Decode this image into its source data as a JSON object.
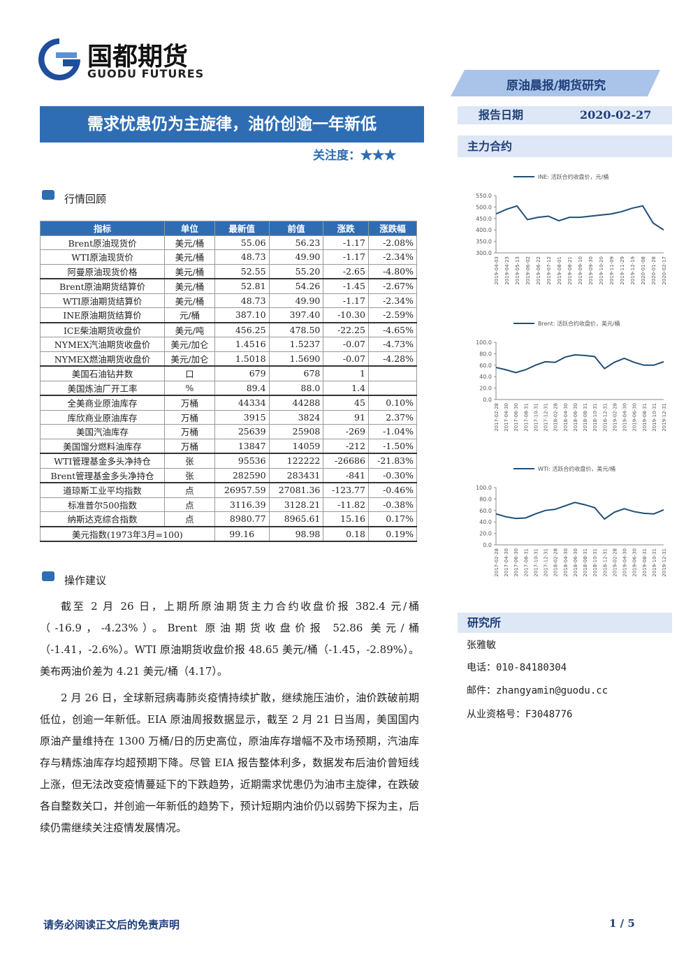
{
  "header": {
    "logo_cn": "国都期货",
    "logo_en": "GUODU FUTURES",
    "banner": "原油晨报/期货研究",
    "title": "需求忧患仍为主旋律，油价创逾一年新低",
    "attention": "关注度：★★★",
    "date_label": "报告日期",
    "date": "2020-02-27"
  },
  "sections": {
    "review": "行情回顾",
    "advice": "操作建议",
    "main": "主力合约",
    "institute": "研究所"
  },
  "table": {
    "headers": [
      "指标",
      "单位",
      "最新值",
      "前值",
      "涨跌",
      "涨跌幅"
    ],
    "rows": [
      [
        "Brent原油现货价",
        "美元/桶",
        "55.06",
        "56.23",
        "-1.17",
        "-2.08%"
      ],
      [
        "WTI原油现货价",
        "美元/桶",
        "48.73",
        "49.90",
        "-1.17",
        "-2.34%"
      ],
      [
        "阿曼原油现货价格",
        "美元/桶",
        "52.55",
        "55.20",
        "-2.65",
        "-4.80%"
      ],
      [
        "Brent原油期货结算价",
        "美元/桶",
        "52.81",
        "54.26",
        "-1.45",
        "-2.67%"
      ],
      [
        "WTI原油期货结算价",
        "美元/桶",
        "48.73",
        "49.90",
        "-1.17",
        "-2.34%"
      ],
      [
        "INE原油期货结算价",
        "元/桶",
        "387.10",
        "397.40",
        "-10.30",
        "-2.59%"
      ],
      [
        "ICE柴油期货收盘价",
        "美元/吨",
        "456.25",
        "478.50",
        "-22.25",
        "-4.65%"
      ],
      [
        "NYMEX汽油期货收盘价",
        "美元/加仑",
        "1.4516",
        "1.5237",
        "-0.07",
        "-4.73%"
      ],
      [
        "NYMEX燃油期货收盘价",
        "美元/加仑",
        "1.5018",
        "1.5690",
        "-0.07",
        "-4.28%"
      ],
      [
        "美国石油钻井数",
        "口",
        "679",
        "678",
        "1",
        null
      ],
      [
        "美国炼油厂开工率",
        "%",
        "89.4",
        "88.0",
        "1.4",
        null
      ],
      [
        "全美商业原油库存",
        "万桶",
        "44334",
        "44288",
        "45",
        "0.10%"
      ],
      [
        "库欣商业原油库存",
        "万桶",
        "3915",
        "3824",
        "91",
        "2.37%"
      ],
      [
        "美国汽油库存",
        "万桶",
        "25639",
        "25908",
        "-269",
        "-1.04%"
      ],
      [
        "美国馏分燃料油库存",
        "万桶",
        "13847",
        "14059",
        "-212",
        "-1.50%"
      ],
      [
        "WTI管理基金多头净持仓",
        "张",
        "95536",
        "122222",
        "-26686",
        "-21.83%"
      ],
      [
        "Brent管理基金多头净持仓",
        "张",
        "282590",
        "283431",
        "-841",
        "-0.30%"
      ],
      [
        "道琼斯工业平均指数",
        "点",
        "26957.59",
        "27081.36",
        "-123.77",
        "-0.46%"
      ],
      [
        "标准普尔500指数",
        "点",
        "3116.39",
        "3128.21",
        "-11.82",
        "-0.38%"
      ],
      [
        "纳斯达克综合指数",
        "点",
        "8980.77",
        "8965.61",
        "15.16",
        "0.17%"
      ],
      [
        "美元指数(1973年3月=100)",
        null,
        "99.16",
        "98.98",
        "0.18",
        "0.19%"
      ]
    ]
  },
  "paragraphs": [
    "截至 2 月 26 日，上期所原油期货主力合约收盘价报 382.4 元/桶（-16.9，-4.23%）。Brent 原油期货收盘价报 52.86 美元/桶（-1.41，-2.6%）。WTI 原油期货收盘价报 48.65 美元/桶（-1.45，-2.89%）。美布两油价差为 4.21 美元/桶（4.17）。",
    "2 月 26 日，全球新冠病毒肺炎疫情持续扩散，继续施压油价，油价跌破前期低位，创逾一年新低。EIA 原油周报数据显示，截至 2 月 21 日当周，美国国内原油产量维持在 1300 万桶/日的历史高位，原油库存增幅不及市场预期，汽油库存与精炼油库存均超预期下降。尽管 EIA 报告整体利多，数据发布后油价曾短线上涨，但无法改变疫情蔓延下的下跌趋势，近期需求忧患仍为油市主旋律，在跌破各自整数关口，并创逾一年新低的趋势下，预计短期内油价仍以弱势下探为主，后续仍需继续关注疫情发展情况。"
  ],
  "researcher": {
    "name": "张雅敏",
    "phone": "电话：010-84180304",
    "email": "邮件：zhangyamin@guodu.cc",
    "license": "从业资格号：F3048776"
  },
  "footer": {
    "disclaimer": "请务必阅读正文后的免责声明",
    "page": "1 / 5"
  },
  "chart_data": [
    {
      "type": "line",
      "x": [
        "2019-04-03",
        "2019-04-23",
        "2019-05-13",
        "2019-06-02",
        "2019-06-22",
        "2019-07-12",
        "2019-08-01",
        "2019-08-21",
        "2019-09-10",
        "2019-09-30",
        "2019-10-20",
        "2019-11-09",
        "2019-11-29",
        "2019-12-19",
        "2020-01-08",
        "2020-01-28",
        "2020-02-17"
      ],
      "series": [
        {
          "name": "INE: 活跃合约收盘价，元/桶",
          "color": "#1f4e79",
          "values": [
            470,
            490,
            505,
            445,
            455,
            460,
            440,
            455,
            455,
            460,
            465,
            470,
            480,
            495,
            505,
            430,
            400
          ]
        }
      ],
      "ylim": [
        300,
        550
      ],
      "yticks": [
        {
          "value": 300,
          "label": "300.0"
        },
        {
          "value": 350,
          "label": "350.0"
        },
        {
          "value": 400,
          "label": "400.0"
        },
        {
          "value": 450,
          "label": "450.0"
        },
        {
          "value": 500,
          "label": "500.0"
        },
        {
          "value": 550,
          "label": "550.0"
        }
      ]
    },
    {
      "type": "line",
      "x": [
        "2017-02-28",
        "2017-04-30",
        "2017-06-30",
        "2017-08-31",
        "2017-10-31",
        "2017-12-31",
        "2018-02-28",
        "2018-04-30",
        "2018-06-30",
        "2018-08-31",
        "2018-10-31",
        "2018-12-31",
        "2019-02-28",
        "2019-04-30",
        "2019-06-30",
        "2019-08-31",
        "2019-10-31",
        "2019-12-31"
      ],
      "series": [
        {
          "name": "Brent: 活跃合约收盘价，美元/桶",
          "color": "#1f4e79",
          "values": [
            56,
            52,
            47,
            52,
            60,
            66,
            65,
            74,
            78,
            77,
            75,
            54,
            65,
            72,
            65,
            60,
            60,
            66
          ]
        }
      ],
      "ylim": [
        0,
        100
      ],
      "yticks": [
        {
          "value": 0,
          "label": "0.0"
        },
        {
          "value": 20,
          "label": "20.0"
        },
        {
          "value": 40,
          "label": "40.0"
        },
        {
          "value": 60,
          "label": "60.0"
        },
        {
          "value": 80,
          "label": "80.0"
        },
        {
          "value": 100,
          "label": "100.0"
        }
      ]
    },
    {
      "type": "line",
      "x": [
        "2017-02-28",
        "2017-04-30",
        "2017-06-30",
        "2017-08-31",
        "2017-10-31",
        "2017-12-31",
        "2018-02-28",
        "2018-04-30",
        "2018-06-30",
        "2018-08-31",
        "2018-10-31",
        "2018-12-31",
        "2019-02-28",
        "2019-04-30",
        "2019-06-30",
        "2019-08-31",
        "2019-10-31",
        "2019-12-31"
      ],
      "series": [
        {
          "name": "WTI: 活跃合约收盘价，美元/桶",
          "color": "#1f4e79",
          "values": [
            54,
            49,
            46,
            47,
            54,
            60,
            62,
            68,
            74,
            70,
            65,
            45,
            57,
            63,
            58,
            55,
            54,
            61
          ]
        }
      ],
      "ylim": [
        0,
        100
      ],
      "yticks": [
        {
          "value": 0,
          "label": "0.0"
        },
        {
          "value": 20,
          "label": "20.0"
        },
        {
          "value": 40,
          "label": "40.0"
        },
        {
          "value": 60,
          "label": "60.0"
        },
        {
          "value": 80,
          "label": "80.0"
        },
        {
          "value": 100,
          "label": "100.0"
        }
      ]
    }
  ]
}
